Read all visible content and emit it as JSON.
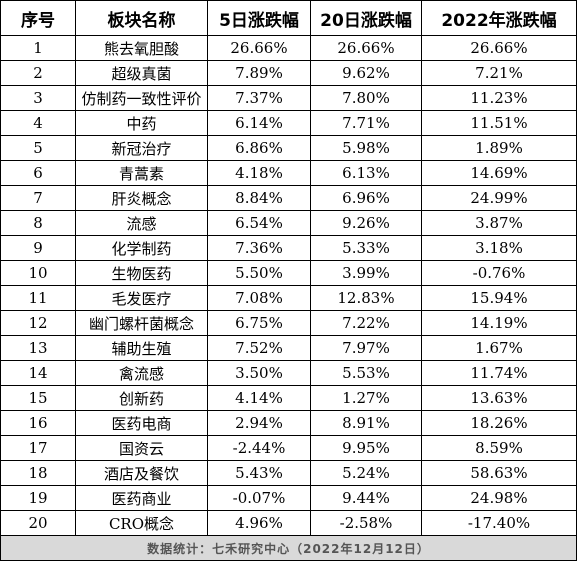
{
  "headers": [
    "序号",
    "板块名称",
    "5日涨跌幅",
    "20日涨跌幅",
    "2022年涨跌幅"
  ],
  "rows": [
    {
      "no": "1",
      "name": "熊去氧胆酸",
      "d5": "26.66%",
      "d20": "26.66%",
      "y2022": "26.66%"
    },
    {
      "no": "2",
      "name": "超级真菌",
      "d5": "7.89%",
      "d20": "9.62%",
      "y2022": "7.21%"
    },
    {
      "no": "3",
      "name": "仿制药一致性评价",
      "d5": "7.37%",
      "d20": "7.80%",
      "y2022": "11.23%"
    },
    {
      "no": "4",
      "name": "中药",
      "d5": "6.14%",
      "d20": "7.71%",
      "y2022": "11.51%"
    },
    {
      "no": "5",
      "name": "新冠治疗",
      "d5": "6.86%",
      "d20": "5.98%",
      "y2022": "1.89%"
    },
    {
      "no": "6",
      "name": "青蒿素",
      "d5": "4.18%",
      "d20": "6.13%",
      "y2022": "14.69%"
    },
    {
      "no": "7",
      "name": "肝炎概念",
      "d5": "8.84%",
      "d20": "6.96%",
      "y2022": "24.99%"
    },
    {
      "no": "8",
      "name": "流感",
      "d5": "6.54%",
      "d20": "9.26%",
      "y2022": "3.87%"
    },
    {
      "no": "9",
      "name": "化学制药",
      "d5": "7.36%",
      "d20": "5.33%",
      "y2022": "3.18%"
    },
    {
      "no": "10",
      "name": "生物医药",
      "d5": "5.50%",
      "d20": "3.99%",
      "y2022": "-0.76%"
    },
    {
      "no": "11",
      "name": "毛发医疗",
      "d5": "7.08%",
      "d20": "12.83%",
      "y2022": "15.94%"
    },
    {
      "no": "12",
      "name": "幽门螺杆菌概念",
      "d5": "6.75%",
      "d20": "7.22%",
      "y2022": "14.19%"
    },
    {
      "no": "13",
      "name": "辅助生殖",
      "d5": "7.52%",
      "d20": "7.97%",
      "y2022": "1.67%"
    },
    {
      "no": "14",
      "name": "禽流感",
      "d5": "3.50%",
      "d20": "5.53%",
      "y2022": "11.74%"
    },
    {
      "no": "15",
      "name": "创新药",
      "d5": "4.14%",
      "d20": "1.27%",
      "y2022": "13.63%"
    },
    {
      "no": "16",
      "name": "医药电商",
      "d5": "2.94%",
      "d20": "8.91%",
      "y2022": "18.26%"
    },
    {
      "no": "17",
      "name": "国资云",
      "d5": "-2.44%",
      "d20": "9.95%",
      "y2022": "8.59%"
    },
    {
      "no": "18",
      "name": "酒店及餐饮",
      "d5": "5.43%",
      "d20": "5.24%",
      "y2022": "58.63%"
    },
    {
      "no": "19",
      "name": "医药商业",
      "d5": "-0.07%",
      "d20": "9.44%",
      "y2022": "24.98%"
    },
    {
      "no": "20",
      "name": "CRO概念",
      "d5": "4.96%",
      "d20": "-2.58%",
      "y2022": "-17.40%"
    }
  ],
  "footer": "数据统计：七禾研究中心（2022年12月12日）"
}
